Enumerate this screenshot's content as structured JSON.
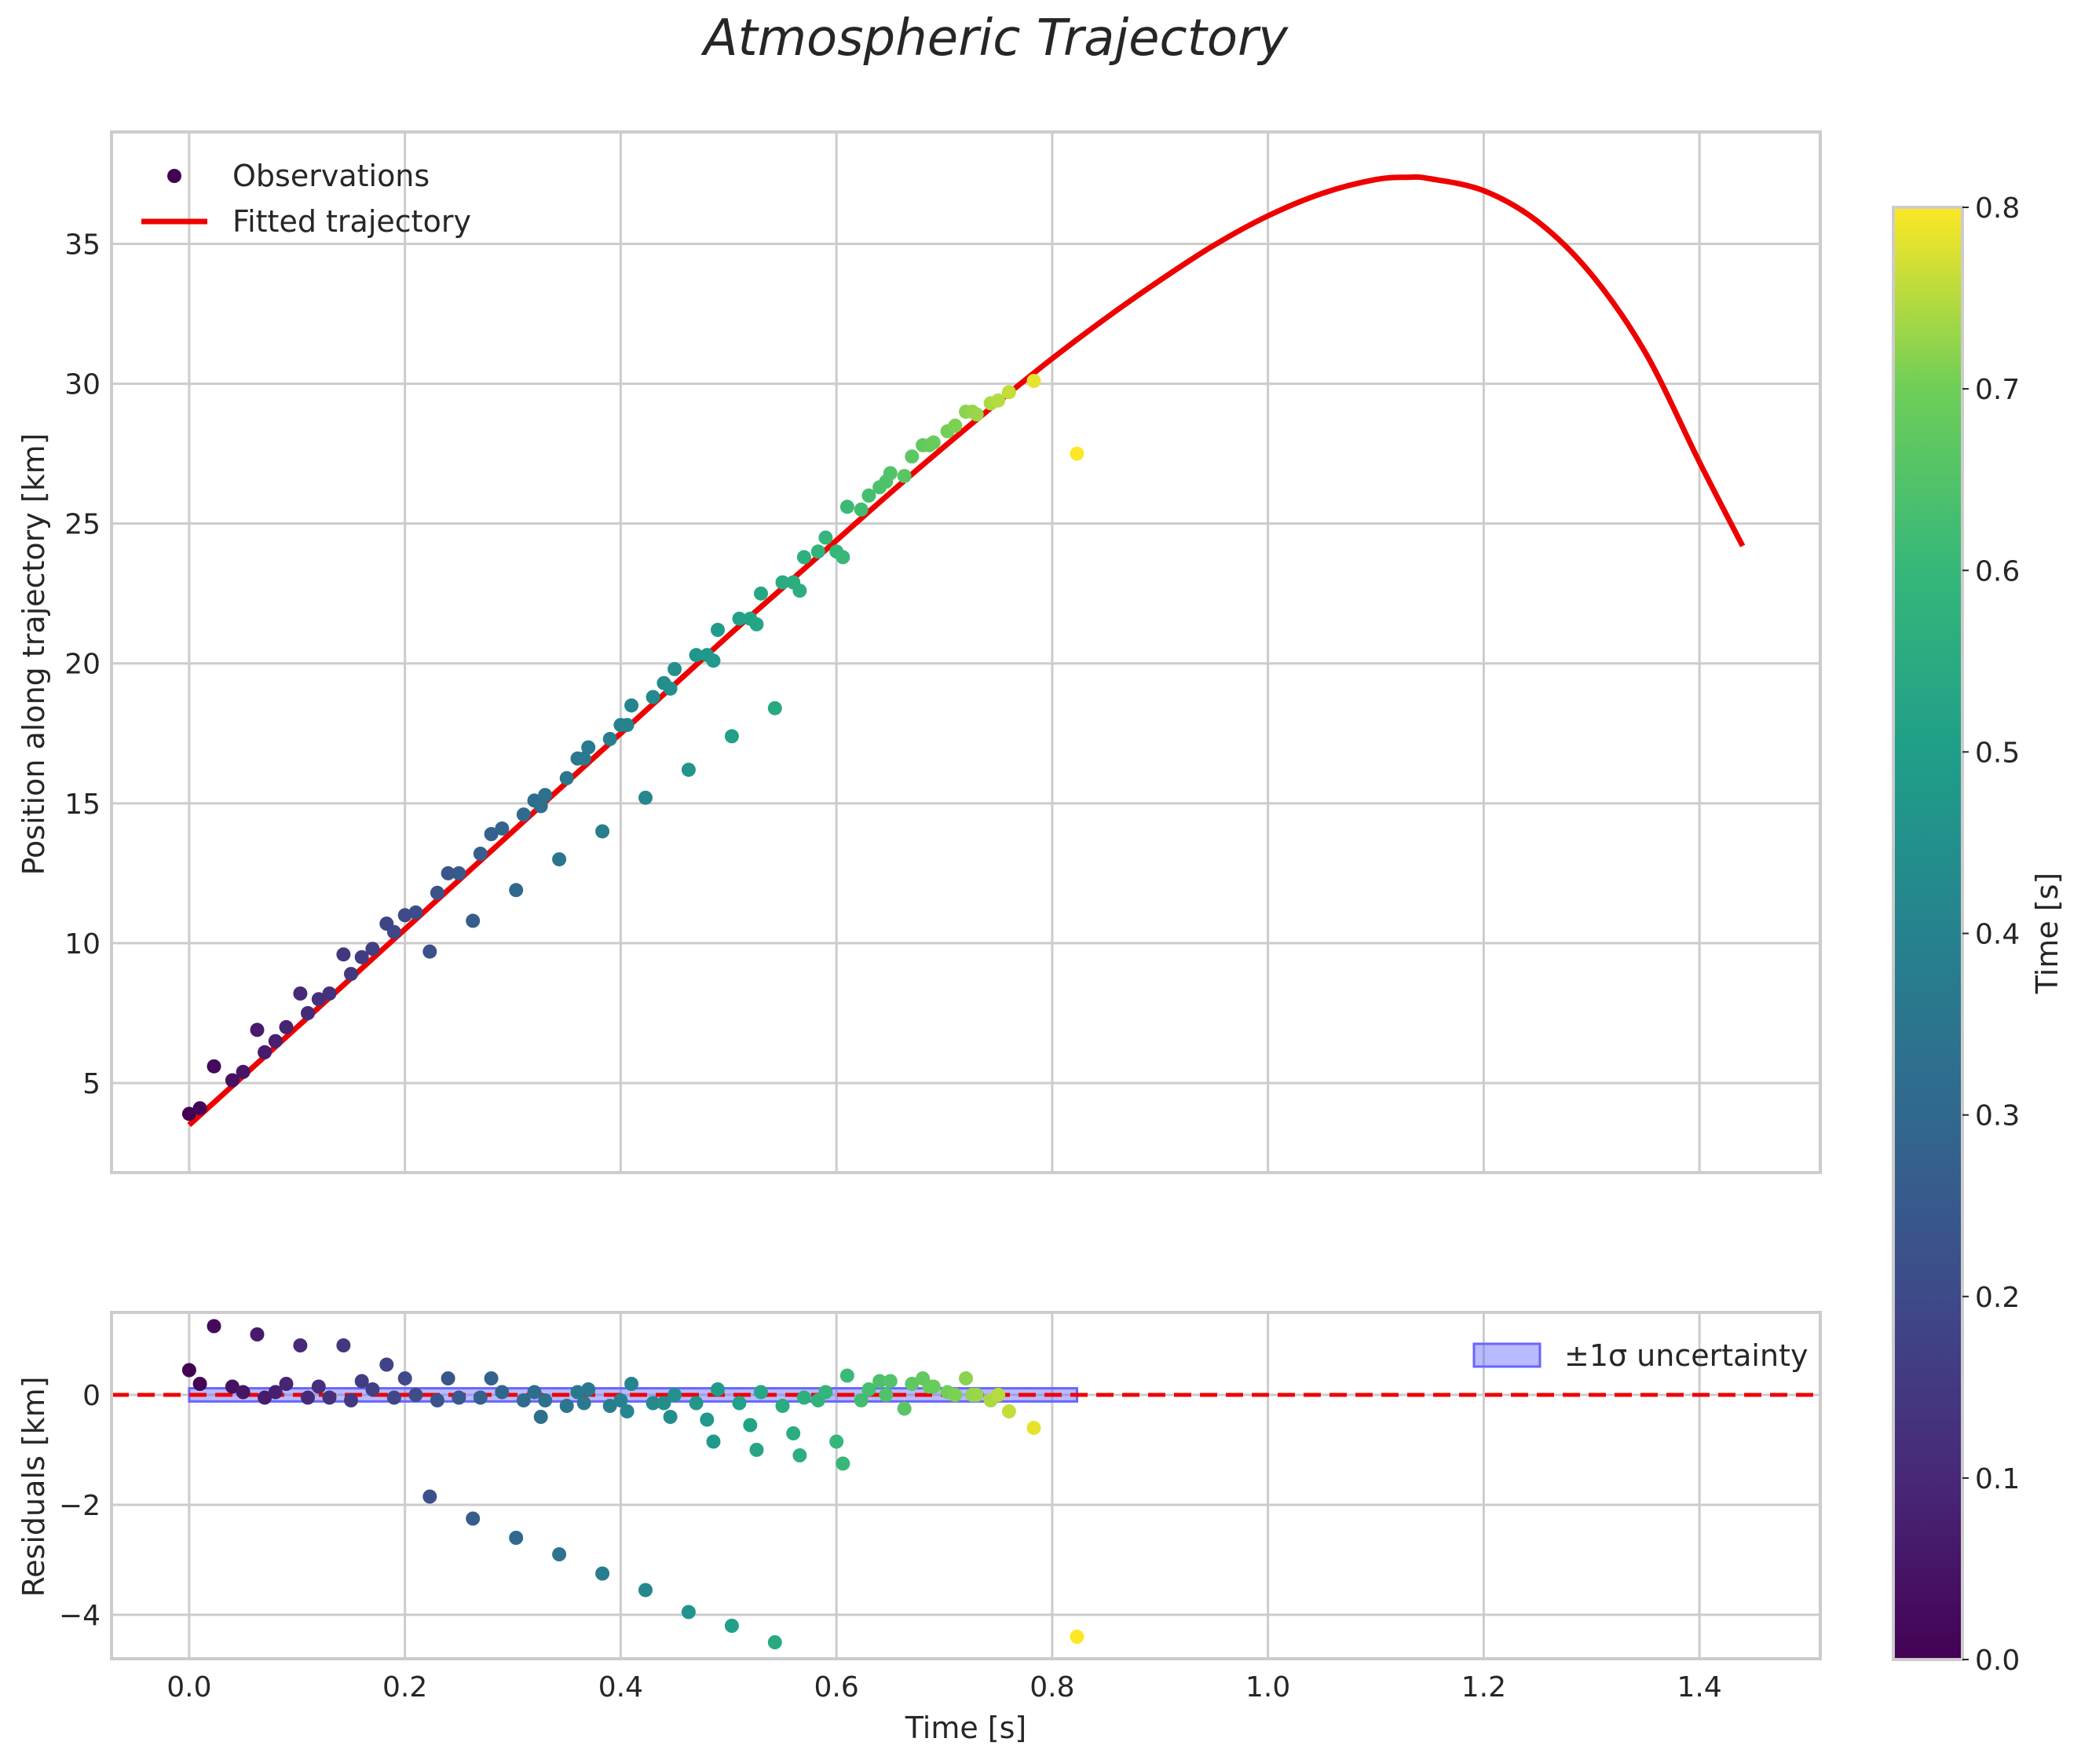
{
  "chart_data": [
    {
      "type": "scatter",
      "panel": "top",
      "title": "Atmospheric Trajectory",
      "xlabel": "",
      "ylabel": "Position along trajectory [km]",
      "xlim": [
        -0.072,
        1.512
      ],
      "ylim": [
        1.8,
        39.0
      ],
      "xticks": [
        0.0,
        0.2,
        0.4,
        0.6,
        0.8,
        1.0,
        1.2,
        1.4
      ],
      "yticks": [
        5,
        10,
        15,
        20,
        25,
        30,
        35
      ],
      "ytick_labels": [
        "5",
        "10",
        "15",
        "20",
        "25",
        "30",
        "35"
      ],
      "grid": true,
      "legend_position": "upper-left",
      "legend": [
        {
          "label": "Observations",
          "kind": "marker",
          "color": "#440154"
        },
        {
          "label": "Fitted trajectory",
          "kind": "line",
          "color": "#ee0000"
        }
      ],
      "observations": {
        "name": "Observations",
        "x": [
          0.0,
          0.01,
          0.023,
          0.04,
          0.05,
          0.063,
          0.07,
          0.08,
          0.09,
          0.103,
          0.11,
          0.12,
          0.13,
          0.143,
          0.15,
          0.16,
          0.17,
          0.183,
          0.19,
          0.2,
          0.21,
          0.223,
          0.23,
          0.24,
          0.25,
          0.263,
          0.27,
          0.28,
          0.29,
          0.303,
          0.31,
          0.32,
          0.326,
          0.33,
          0.343,
          0.35,
          0.36,
          0.366,
          0.37,
          0.383,
          0.39,
          0.4,
          0.406,
          0.41,
          0.423,
          0.43,
          0.44,
          0.446,
          0.45,
          0.463,
          0.47,
          0.48,
          0.486,
          0.49,
          0.503,
          0.51,
          0.52,
          0.526,
          0.53,
          0.543,
          0.55,
          0.56,
          0.566,
          0.57,
          0.583,
          0.59,
          0.6,
          0.606,
          0.61,
          0.623,
          0.63,
          0.64,
          0.646,
          0.65,
          0.663,
          0.67,
          0.68,
          0.686,
          0.69,
          0.703,
          0.71,
          0.72,
          0.726,
          0.73,
          0.743,
          0.75,
          0.76,
          0.783,
          0.823
        ],
        "y": [
          3.9,
          4.1,
          5.6,
          5.1,
          5.4,
          6.9,
          6.1,
          6.5,
          7.0,
          8.2,
          7.5,
          8.0,
          8.2,
          9.6,
          8.9,
          9.5,
          9.8,
          10.7,
          10.4,
          11.0,
          11.1,
          9.7,
          11.8,
          12.5,
          12.5,
          10.8,
          13.2,
          13.9,
          14.1,
          11.9,
          14.6,
          15.1,
          14.9,
          15.3,
          13.0,
          15.9,
          16.6,
          16.6,
          17.0,
          14.0,
          17.3,
          17.8,
          17.8,
          18.5,
          15.2,
          18.8,
          19.3,
          19.1,
          19.8,
          16.2,
          20.3,
          20.3,
          20.1,
          21.2,
          17.4,
          21.6,
          21.6,
          21.4,
          22.5,
          18.4,
          22.9,
          22.9,
          22.6,
          23.8,
          24.0,
          24.5,
          24.0,
          23.8,
          25.6,
          25.5,
          26.0,
          26.3,
          26.5,
          26.8,
          26.7,
          27.4,
          27.8,
          27.8,
          27.9,
          28.3,
          28.5,
          29.0,
          29.0,
          28.9,
          29.3,
          29.4,
          29.7,
          30.1,
          27.5
        ],
        "color_by": "x",
        "colormap": "viridis",
        "color_range": [
          0.0,
          0.8
        ]
      },
      "fitted_curve": {
        "name": "Fitted trajectory",
        "x": [
          0.0,
          0.05,
          0.1,
          0.15,
          0.2,
          0.25,
          0.3,
          0.35,
          0.4,
          0.45,
          0.5,
          0.55,
          0.6,
          0.65,
          0.7,
          0.75,
          0.8,
          0.85,
          0.9,
          0.95,
          1.0,
          1.05,
          1.1,
          1.13,
          1.15,
          1.2,
          1.25,
          1.3,
          1.35,
          1.4,
          1.44
        ],
        "y": [
          3.5,
          5.25,
          7.0,
          8.75,
          10.5,
          12.25,
          14.0,
          15.75,
          17.5,
          19.25,
          21.0,
          22.7,
          24.4,
          26.1,
          27.75,
          29.35,
          30.9,
          32.35,
          33.7,
          34.95,
          36.0,
          36.8,
          37.3,
          37.38,
          37.33,
          36.9,
          35.8,
          33.9,
          31.1,
          27.2,
          24.2
        ],
        "color": "#ee0000"
      }
    },
    {
      "type": "scatter",
      "panel": "bottom",
      "xlabel": "Time [s]",
      "ylabel": "Residuals [km]",
      "xlim": [
        -0.072,
        1.512
      ],
      "ylim": [
        -4.8,
        1.5
      ],
      "xticks": [
        0.0,
        0.2,
        0.4,
        0.6,
        0.8,
        1.0,
        1.2,
        1.4
      ],
      "xtick_labels": [
        "0.0",
        "0.2",
        "0.4",
        "0.6",
        "0.8",
        "1.0",
        "1.2",
        "1.4"
      ],
      "yticks": [
        -4,
        -2,
        0
      ],
      "ytick_labels": [
        "−4",
        "−2",
        "0"
      ],
      "grid": true,
      "legend_position": "upper-right",
      "legend": [
        {
          "label": "±1σ uncertainty",
          "kind": "patch",
          "color": "#6666ff"
        }
      ],
      "residuals": {
        "x": [
          0.0,
          0.01,
          0.023,
          0.04,
          0.05,
          0.063,
          0.07,
          0.08,
          0.09,
          0.103,
          0.11,
          0.12,
          0.13,
          0.143,
          0.15,
          0.16,
          0.17,
          0.183,
          0.19,
          0.2,
          0.21,
          0.223,
          0.23,
          0.24,
          0.25,
          0.263,
          0.27,
          0.28,
          0.29,
          0.303,
          0.31,
          0.32,
          0.326,
          0.33,
          0.343,
          0.35,
          0.36,
          0.366,
          0.37,
          0.383,
          0.39,
          0.4,
          0.406,
          0.41,
          0.423,
          0.43,
          0.44,
          0.446,
          0.45,
          0.463,
          0.47,
          0.48,
          0.486,
          0.49,
          0.503,
          0.51,
          0.52,
          0.526,
          0.53,
          0.543,
          0.55,
          0.56,
          0.566,
          0.57,
          0.583,
          0.59,
          0.6,
          0.606,
          0.61,
          0.623,
          0.63,
          0.64,
          0.646,
          0.65,
          0.663,
          0.67,
          0.68,
          0.686,
          0.69,
          0.703,
          0.71,
          0.72,
          0.726,
          0.73,
          0.743,
          0.75,
          0.76,
          0.783,
          0.823
        ],
        "y": [
          0.45,
          0.2,
          1.25,
          0.15,
          0.05,
          1.1,
          -0.05,
          0.05,
          0.2,
          0.9,
          -0.05,
          0.15,
          -0.05,
          0.9,
          -0.1,
          0.25,
          0.1,
          0.55,
          -0.05,
          0.3,
          0.0,
          -1.85,
          -0.1,
          0.3,
          -0.05,
          -2.25,
          -0.05,
          0.3,
          0.05,
          -2.6,
          -0.1,
          0.05,
          -0.4,
          -0.1,
          -2.9,
          -0.2,
          0.05,
          -0.15,
          0.1,
          -3.25,
          -0.2,
          -0.1,
          -0.3,
          0.2,
          -3.55,
          -0.15,
          -0.15,
          -0.4,
          0.0,
          -3.95,
          -0.15,
          -0.45,
          -0.85,
          0.1,
          -4.2,
          -0.15,
          -0.55,
          -1.0,
          0.05,
          -4.5,
          -0.2,
          -0.7,
          -1.1,
          -0.05,
          -0.1,
          0.05,
          -0.85,
          -1.25,
          0.35,
          -0.1,
          0.1,
          0.25,
          0.0,
          0.25,
          -0.25,
          0.2,
          0.3,
          0.15,
          0.15,
          0.05,
          0.0,
          0.3,
          0.0,
          0.0,
          -0.1,
          0.0,
          -0.3,
          -0.6,
          -4.4
        ],
        "color_by": "x",
        "colormap": "viridis",
        "color_range": [
          0.0,
          0.8
        ]
      },
      "uncertainty_band": {
        "name": "±1σ uncertainty",
        "x": [
          0.0,
          0.823
        ],
        "half_width": 0.12,
        "color": "#6666ff"
      },
      "zero_line": {
        "y": 0,
        "style": "dashed",
        "color": "#ee0000"
      }
    }
  ],
  "colorbar": {
    "label": "Time [s]",
    "range": [
      0.0,
      0.8
    ],
    "ticks": [
      "0.0",
      "0.1",
      "0.2",
      "0.3",
      "0.4",
      "0.5",
      "0.6",
      "0.7",
      "0.8"
    ],
    "colormap": "viridis"
  }
}
